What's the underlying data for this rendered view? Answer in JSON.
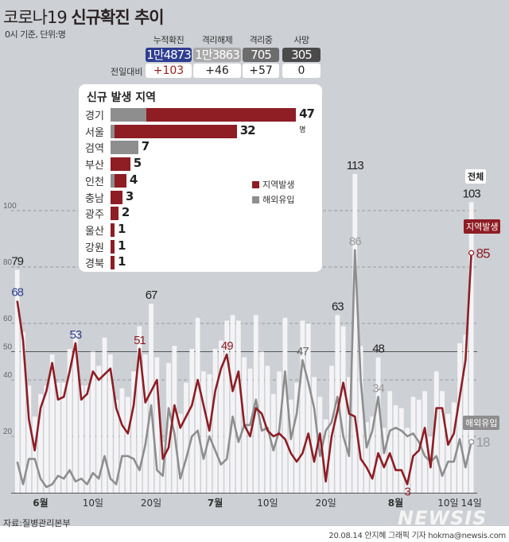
{
  "header": {
    "title_light": "코로나19",
    "title_bold": "신규확진 추이",
    "subtitle": "0시 기준, 단위:명"
  },
  "stats": {
    "prev_label": "전일대비",
    "items": [
      {
        "label": "누적확진",
        "value": "1만4873",
        "delta": "+103",
        "color": "#2e3d8f",
        "delta_color": "#9b1c1c"
      },
      {
        "label": "격리해제",
        "value": "1만3863",
        "delta": "+46",
        "color": "#a9a9a9",
        "delta_color": "#222222"
      },
      {
        "label": "격리중",
        "value": "705",
        "delta": "+57",
        "color": "#6c6c6c",
        "delta_color": "#222222"
      },
      {
        "label": "사망",
        "value": "305",
        "delta": "0",
        "color": "#4a4a4a",
        "delta_color": "#222222"
      }
    ]
  },
  "region_panel": {
    "title": "신규 발생 지역",
    "unit": "명",
    "legend": [
      {
        "label": "지역발생",
        "color": "#8e1d24"
      },
      {
        "label": "해외유입",
        "color": "#8e8e8e"
      }
    ],
    "regions": [
      {
        "name": "경기",
        "local": 38,
        "overseas": 9,
        "total": 47
      },
      {
        "name": "서울",
        "local": 31,
        "overseas": 1,
        "total": 32
      },
      {
        "name": "검역",
        "local": 0,
        "overseas": 7,
        "total": 7
      },
      {
        "name": "부산",
        "local": 5,
        "overseas": 0,
        "total": 5
      },
      {
        "name": "인천",
        "local": 3,
        "overseas": 1,
        "total": 4
      },
      {
        "name": "충남",
        "local": 3,
        "overseas": 0,
        "total": 3
      },
      {
        "name": "광주",
        "local": 2,
        "overseas": 0,
        "total": 2
      },
      {
        "name": "울산",
        "local": 1,
        "overseas": 0,
        "total": 1
      },
      {
        "name": "강원",
        "local": 1,
        "overseas": 0,
        "total": 1
      },
      {
        "name": "경북",
        "local": 1,
        "overseas": 0,
        "total": 1
      }
    ]
  },
  "chart_data": {
    "type": "bar+line",
    "x": [
      "5/28",
      "5/29",
      "5/30",
      "5/31",
      "6/1",
      "6/2",
      "6/3",
      "6/4",
      "6/5",
      "6/6",
      "6/7",
      "6/8",
      "6/9",
      "6/10",
      "6/11",
      "6/12",
      "6/13",
      "6/14",
      "6/15",
      "6/16",
      "6/17",
      "6/18",
      "6/19",
      "6/20",
      "6/21",
      "6/22",
      "6/23",
      "6/24",
      "6/25",
      "6/26",
      "6/27",
      "6/28",
      "6/29",
      "6/30",
      "7/1",
      "7/2",
      "7/3",
      "7/4",
      "7/5",
      "7/6",
      "7/7",
      "7/8",
      "7/9",
      "7/10",
      "7/11",
      "7/12",
      "7/13",
      "7/14",
      "7/15",
      "7/16",
      "7/17",
      "7/18",
      "7/19",
      "7/20",
      "7/21",
      "7/22",
      "7/23",
      "7/24",
      "7/25",
      "7/26",
      "7/27",
      "7/28",
      "7/29",
      "7/30",
      "7/31",
      "8/1",
      "8/2",
      "8/3",
      "8/4",
      "8/5",
      "8/6",
      "8/7",
      "8/8",
      "8/9",
      "8/10",
      "8/11",
      "8/12",
      "8/13",
      "8/14"
    ],
    "x_tick_labels": [
      {
        "x": "6/1",
        "label": "6월"
      },
      {
        "x": "6/10",
        "label": "10일"
      },
      {
        "x": "6/20",
        "label": "20일"
      },
      {
        "x": "7/1",
        "label": "7월"
      },
      {
        "x": "7/10",
        "label": "10일"
      },
      {
        "x": "7/20",
        "label": "20일"
      },
      {
        "x": "8/1",
        "label": "8월"
      },
      {
        "x": "8/10",
        "label": "10일"
      },
      {
        "x": "8/14",
        "label": "14일"
      }
    ],
    "y_ticks": [
      20,
      40,
      50,
      60,
      80,
      100
    ],
    "ylim": [
      0,
      120
    ],
    "series": [
      {
        "name": "전체",
        "type": "bar",
        "color": "#f4f4f6",
        "values": [
          79,
          57,
          38,
          27,
          35,
          38,
          49,
          39,
          39,
          51,
          57,
          38,
          38,
          50,
          45,
          55,
          49,
          33,
          37,
          34,
          43,
          59,
          49,
          67,
          48,
          18,
          46,
          52,
          28,
          39,
          51,
          62,
          43,
          42,
          51,
          54,
          61,
          63,
          61,
          48,
          44,
          63,
          50,
          45,
          35,
          43,
          62,
          33,
          39,
          61,
          60,
          41,
          34,
          26,
          45,
          63,
          59,
          41,
          113,
          52,
          25,
          27,
          48,
          23,
          36,
          31,
          30,
          23,
          34,
          33,
          36,
          20,
          43,
          36,
          28,
          32,
          53,
          56,
          103
        ]
      },
      {
        "name": "지역발생",
        "type": "line",
        "color": "#8e1d24",
        "values": [
          68,
          54,
          26,
          15,
          30,
          36,
          46,
          33,
          34,
          43,
          53,
          33,
          35,
          43,
          40,
          42,
          44,
          30,
          24,
          21,
          31,
          51,
          32,
          36,
          40,
          12,
          16,
          31,
          23,
          27,
          31,
          40,
          31,
          22,
          36,
          44,
          49,
          36,
          43,
          24,
          20,
          30,
          28,
          22,
          20,
          21,
          19,
          14,
          11,
          14,
          21,
          11,
          21,
          4,
          20,
          29,
          39,
          28,
          27,
          12,
          9,
          5,
          14,
          9,
          14,
          8,
          8,
          3,
          13,
          15,
          23,
          9,
          30,
          30,
          17,
          21,
          34,
          47,
          85
        ]
      },
      {
        "name": "해외유입",
        "type": "line",
        "color": "#8e8e8e",
        "values": [
          11,
          3,
          12,
          12,
          5,
          2,
          3,
          6,
          5,
          8,
          4,
          5,
          3,
          7,
          5,
          13,
          5,
          3,
          13,
          13,
          12,
          8,
          17,
          31,
          8,
          6,
          30,
          21,
          5,
          12,
          20,
          22,
          12,
          20,
          15,
          10,
          12,
          27,
          18,
          24,
          24,
          33,
          22,
          23,
          15,
          22,
          43,
          19,
          28,
          47,
          39,
          30,
          13,
          22,
          25,
          34,
          20,
          13,
          86,
          40,
          16,
          22,
          34,
          14,
          22,
          23,
          22,
          20,
          21,
          18,
          13,
          11,
          13,
          6,
          11,
          11,
          19,
          9,
          18
        ]
      }
    ],
    "annotations": [
      {
        "series": "전체",
        "x": "5/28",
        "text": "79",
        "color": "#222222"
      },
      {
        "series": "전체",
        "x": "6/20",
        "text": "67",
        "color": "#222222"
      },
      {
        "series": "전체",
        "x": "7/22",
        "text": "63",
        "color": "#222222"
      },
      {
        "series": "전체",
        "x": "7/25",
        "text": "113",
        "color": "#222222"
      },
      {
        "series": "전체",
        "x": "7/29",
        "text": "48",
        "color": "#222222"
      },
      {
        "series": "전체",
        "x": "8/14",
        "text": "103",
        "color": "#222222"
      },
      {
        "series": "지역발생",
        "x": "5/28",
        "text": "68",
        "color": "#2e3d8f"
      },
      {
        "series": "지역발생",
        "x": "6/7",
        "text": "53",
        "color": "#2e3d8f"
      },
      {
        "series": "지역발생",
        "x": "6/18",
        "text": "51",
        "color": "#8e1d24"
      },
      {
        "series": "지역발생",
        "x": "7/3",
        "text": "49",
        "color": "#8e1d24"
      },
      {
        "series": "지역발생",
        "x": "8/3",
        "text": "3",
        "color": "#8e1d24"
      },
      {
        "series": "지역발생",
        "x": "8/14",
        "text": "85",
        "color": "#8e1d24"
      },
      {
        "series": "해외유입",
        "x": "7/16",
        "text": "47",
        "color": "#666666"
      },
      {
        "series": "해외유입",
        "x": "7/25",
        "text": "86",
        "color": "#999999"
      },
      {
        "series": "해외유입",
        "x": "7/29",
        "text": "34",
        "color": "#999999"
      },
      {
        "series": "해외유입",
        "x": "8/14",
        "text": "18",
        "color": "#999999"
      }
    ],
    "legend_tags": {
      "total": "전체",
      "local": "지역발생",
      "overseas": "해외유입"
    }
  },
  "footer": {
    "source": "자료:질병관리본부",
    "credit": "20.08.14 안지혜 그래픽 기자 hokma@newsis.com",
    "logo": "NEWSIS"
  }
}
